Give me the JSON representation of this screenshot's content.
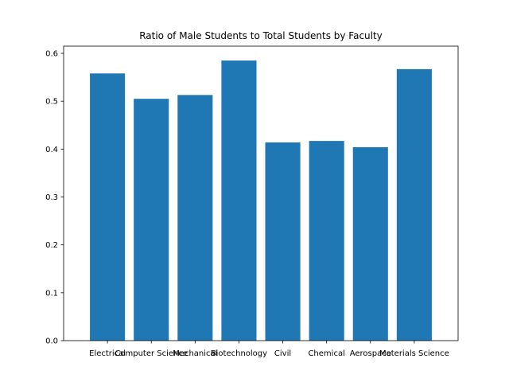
{
  "chart_data": {
    "type": "bar",
    "title": "Ratio of Male Students to Total Students by Faculty",
    "xlabel": "",
    "ylabel": "",
    "categories": [
      "Electrical",
      "Computer Science",
      "Mechanical",
      "Biotechnology",
      "Civil",
      "Chemical",
      "Aerospace",
      "Materials Science"
    ],
    "values": [
      0.558,
      0.505,
      0.513,
      0.585,
      0.414,
      0.417,
      0.404,
      0.567
    ],
    "ylim": [
      0,
      0.615
    ],
    "yticks": [
      "0.0",
      "0.1",
      "0.2",
      "0.3",
      "0.4",
      "0.5",
      "0.6"
    ],
    "bar_color": "#1f77b4",
    "grid": false,
    "legend": "none"
  }
}
